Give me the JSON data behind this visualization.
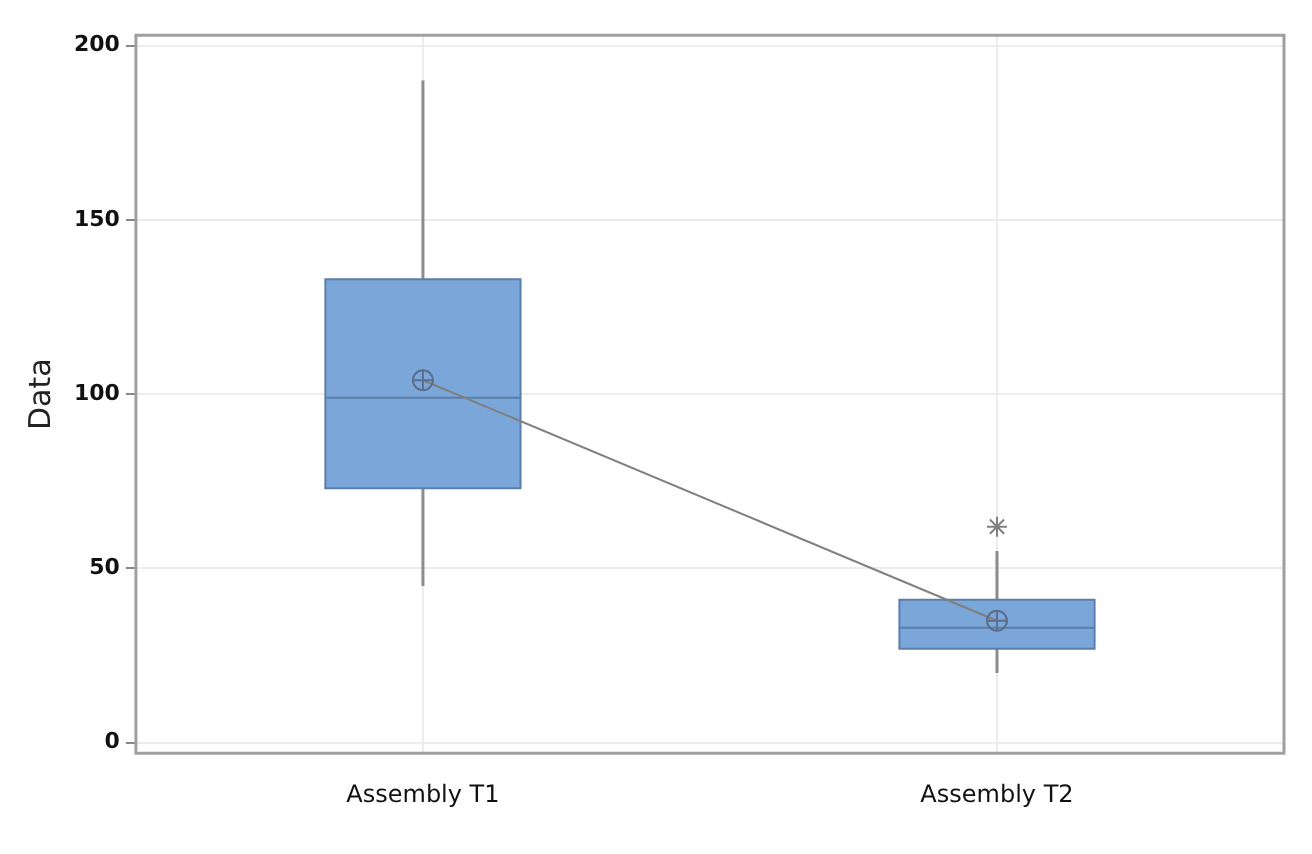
{
  "chart_data": {
    "type": "box",
    "ylabel": "Data",
    "categories": [
      "Assembly T1",
      "Assembly T2"
    ],
    "boxes": [
      {
        "low": 45,
        "q1": 73,
        "median": 99,
        "q3": 133,
        "high": 190,
        "mean": 104
      },
      {
        "low": 20,
        "q1": 27,
        "median": 33,
        "q3": 41,
        "high": 55,
        "mean": 35,
        "outliers": [
          62
        ]
      }
    ],
    "color": "#7aa6da",
    "series": [
      {
        "type": "line",
        "values": [
          104,
          35
        ],
        "color": "#808080",
        "marker": "none"
      }
    ],
    "ylim": [
      -3,
      203
    ],
    "yticks": [
      0,
      50,
      100,
      150,
      200
    ],
    "grid": true,
    "legend": false
  }
}
